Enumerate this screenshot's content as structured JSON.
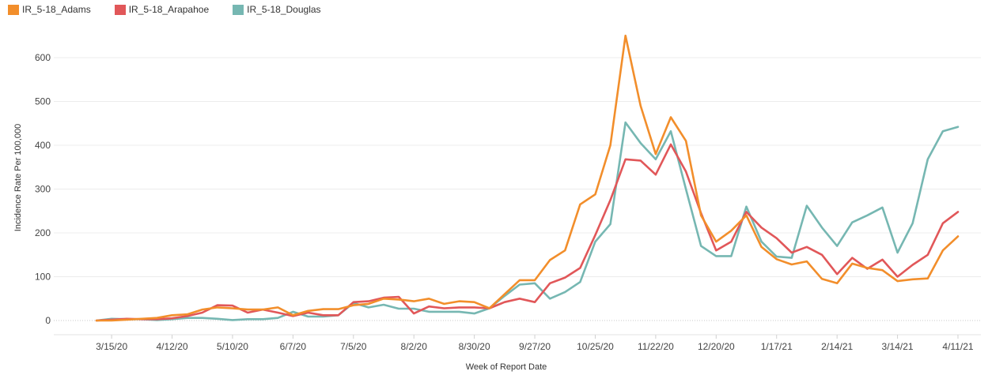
{
  "chart_data": {
    "type": "line",
    "xlabel": "Week of Report Date",
    "ylabel": "Incidence Rate Per 100,000",
    "ylim": [
      0,
      650
    ],
    "yticks": [
      0,
      100,
      200,
      300,
      400,
      500,
      600
    ],
    "xticks": [
      "3/15/20",
      "4/12/20",
      "5/10/20",
      "6/7/20",
      "7/5/20",
      "8/2/20",
      "8/30/20",
      "9/27/20",
      "10/25/20",
      "11/22/20",
      "12/20/20",
      "1/17/21",
      "2/14/21",
      "3/14/21",
      "4/11/21"
    ],
    "legend_position": "top-left",
    "grid": "horizontal",
    "series": [
      {
        "name": "IR_5-18_Adams",
        "color": "#f28e2b",
        "values": [
          0,
          0,
          2,
          4,
          6,
          12,
          14,
          25,
          30,
          28,
          25,
          25,
          30,
          12,
          22,
          26,
          26,
          35,
          38,
          50,
          48,
          44,
          50,
          38,
          44,
          42,
          28,
          60,
          92,
          92,
          138,
          160,
          265,
          288,
          400,
          650,
          490,
          380,
          464,
          410,
          240,
          180,
          205,
          240,
          168,
          140,
          128,
          135,
          95,
          85,
          130,
          120,
          115,
          90,
          94,
          96,
          160,
          192
        ]
      },
      {
        "name": "IR_5-18_Arapahoe",
        "color": "#e15759",
        "values": [
          0,
          2,
          4,
          3,
          3,
          5,
          10,
          18,
          35,
          34,
          18,
          25,
          18,
          10,
          18,
          12,
          12,
          42,
          44,
          52,
          54,
          16,
          32,
          28,
          30,
          30,
          28,
          42,
          50,
          42,
          85,
          98,
          120,
          195,
          275,
          368,
          365,
          333,
          402,
          340,
          245,
          160,
          180,
          248,
          212,
          188,
          155,
          168,
          150,
          106,
          143,
          118,
          139,
          100,
          127,
          150,
          222,
          248
        ]
      },
      {
        "name": "IR_5-18_Douglas",
        "color": "#76b7b2",
        "values": [
          0,
          4,
          3,
          3,
          1,
          3,
          6,
          6,
          4,
          1,
          3,
          3,
          6,
          20,
          9,
          9,
          12,
          40,
          30,
          36,
          27,
          27,
          20,
          20,
          20,
          16,
          28,
          56,
          82,
          85,
          50,
          65,
          88,
          180,
          220,
          452,
          405,
          368,
          432,
          300,
          170,
          147,
          147,
          260,
          180,
          146,
          143,
          262,
          212,
          170,
          224,
          240,
          258,
          155,
          222,
          368,
          432,
          442
        ]
      }
    ]
  }
}
